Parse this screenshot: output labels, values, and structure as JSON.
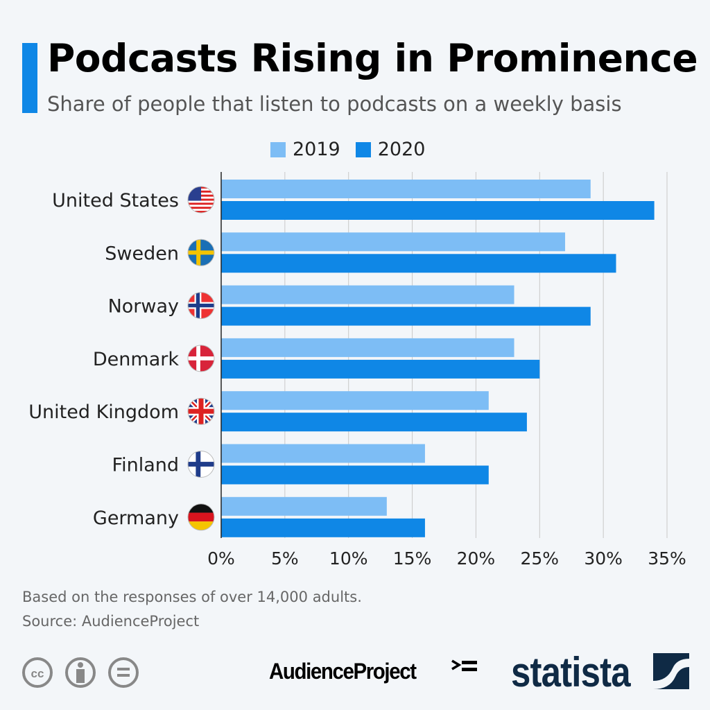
{
  "header": {
    "title": "Podcasts Rising in Prominence",
    "subtitle": "Share of people that listen to podcasts on a weekly basis"
  },
  "chart_data": {
    "type": "bar",
    "orientation": "horizontal",
    "categories": [
      "United States",
      "Sweden",
      "Norway",
      "Denmark",
      "United Kingdom",
      "Finland",
      "Germany"
    ],
    "flags": [
      "us-flag-icon",
      "sweden-flag-icon",
      "norway-flag-icon",
      "denmark-flag-icon",
      "uk-flag-icon",
      "finland-flag-icon",
      "germany-flag-icon"
    ],
    "series": [
      {
        "name": "2019",
        "color": "#7dbdf5",
        "values": [
          29,
          27,
          23,
          23,
          21,
          16,
          13
        ]
      },
      {
        "name": "2020",
        "color": "#0f87e6",
        "values": [
          34,
          31,
          29,
          25,
          24,
          21,
          16
        ]
      }
    ],
    "xlim": [
      0,
      35
    ],
    "xticks": [
      0,
      5,
      10,
      15,
      20,
      25,
      30,
      35
    ],
    "xtick_labels": [
      "0%",
      "5%",
      "10%",
      "15%",
      "20%",
      "25%",
      "30%",
      "35%"
    ],
    "grid": true,
    "legend_position": "top"
  },
  "footer": {
    "note": "Based on the responses of over 14,000 adults.",
    "source": "Source: AudienceProject",
    "partner_logo": "AudienceProject",
    "brand_logo": "statista"
  }
}
